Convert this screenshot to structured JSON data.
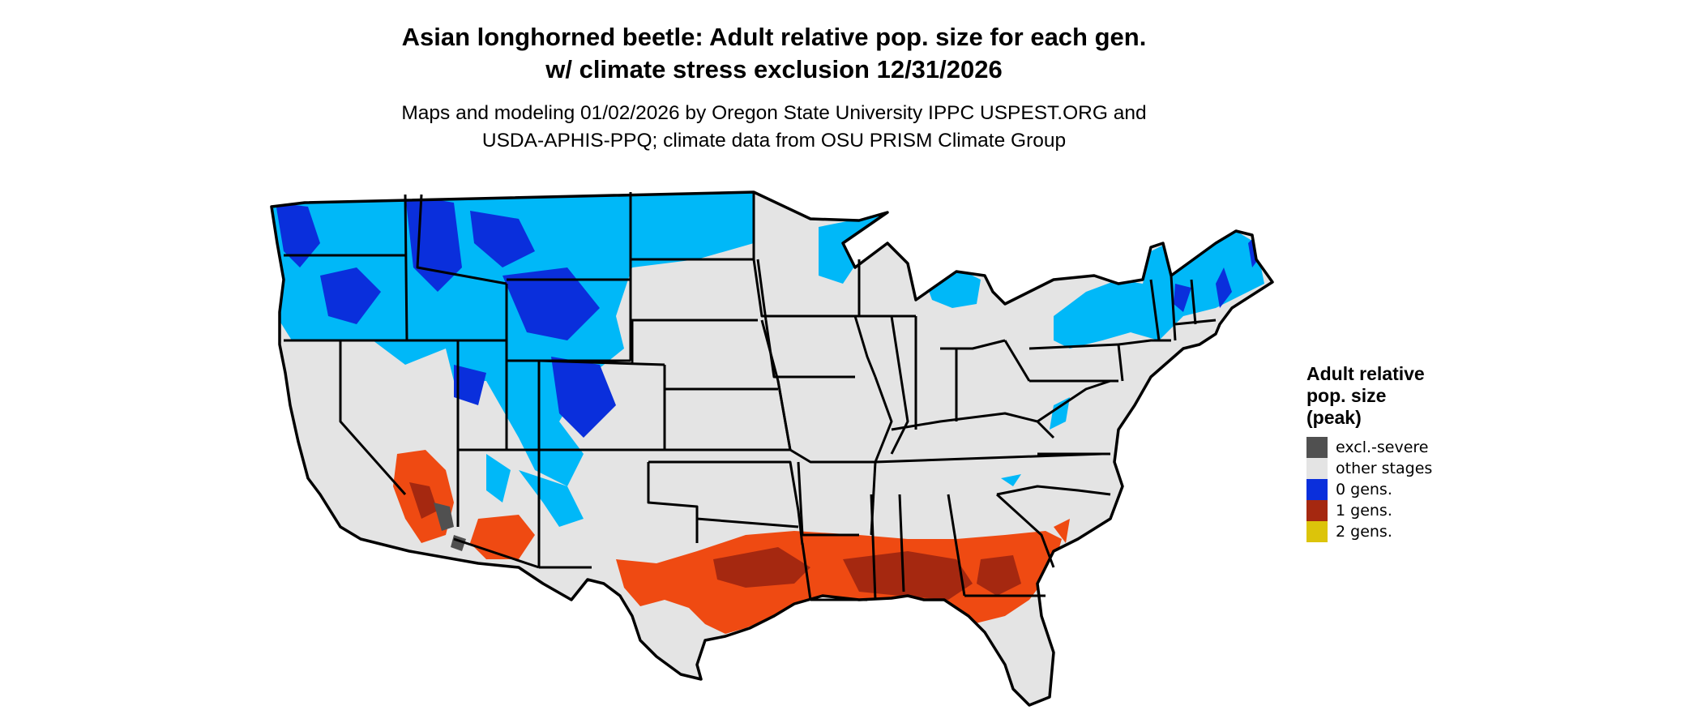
{
  "header": {
    "title_line1": "Asian longhorned beetle: Adult relative pop. size for each gen.",
    "title_line2": "w/ climate stress exclusion 12/31/2026",
    "subtitle_line1": "Maps and modeling 01/02/2026 by Oregon State University IPPC USPEST.ORG and",
    "subtitle_line2": "USDA-APHIS-PPQ; climate data from OSU PRISM Climate Group"
  },
  "legend": {
    "title_line1": "Adult relative",
    "title_line2": "pop. size",
    "title_line3": "(peak)",
    "items": [
      {
        "label": "excl.-severe",
        "color": "#505050"
      },
      {
        "label": "other stages",
        "color": "#e4e4e4"
      },
      {
        "label": "0 gens.",
        "color": "#0a2fdc"
      },
      {
        "label": "1 gens.",
        "color": "#a52810"
      },
      {
        "label": "2 gens.",
        "color": "#dcc40a"
      }
    ]
  },
  "map_colors": {
    "land": "#e4e4e4",
    "border": "#000000",
    "zero_gen_light": "#00b8f8",
    "zero_gen_dark": "#0a2fdc",
    "one_gen_light": "#ef4a12",
    "one_gen_dark": "#a52810",
    "excluded": "#505050"
  }
}
